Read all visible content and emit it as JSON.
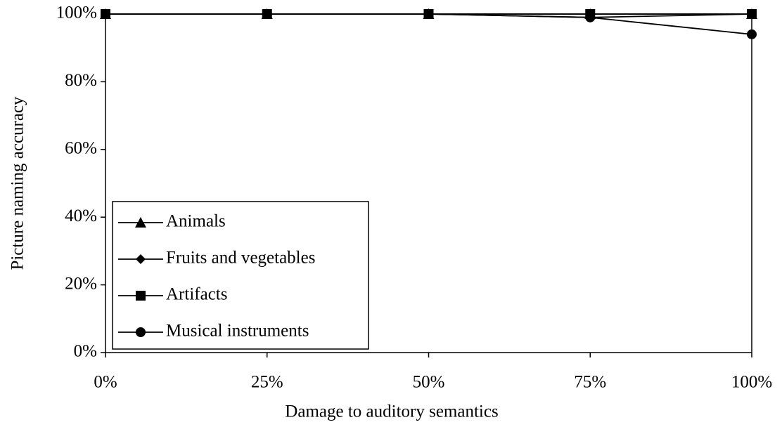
{
  "chart_data": {
    "type": "line",
    "x_label": "Damage to auditory semantics",
    "y_label": "Picture naming accuracy",
    "x": [
      0,
      25,
      50,
      75,
      100
    ],
    "xlim": [
      0,
      100
    ],
    "xticks": [
      {
        "value": 0,
        "label": "0%"
      },
      {
        "value": 25,
        "label": "25%"
      },
      {
        "value": 50,
        "label": "50%"
      },
      {
        "value": 75,
        "label": "75%"
      },
      {
        "value": 100,
        "label": "100%"
      }
    ],
    "ylim": [
      0,
      100
    ],
    "yticks": [
      {
        "value": 0,
        "label": "0%"
      },
      {
        "value": 20,
        "label": "20%"
      },
      {
        "value": 40,
        "label": "40%"
      },
      {
        "value": 60,
        "label": "60%"
      },
      {
        "value": 80,
        "label": "80%"
      },
      {
        "value": 100,
        "label": "100%"
      }
    ],
    "legend": "lower left",
    "series": [
      {
        "name": "Animals",
        "color": "#000000",
        "marker": "triangle",
        "values": [
          100,
          100,
          100,
          100,
          100
        ]
      },
      {
        "name": "Fruits and vegetables",
        "color": "#000000",
        "marker": "diamond",
        "values": [
          100,
          100,
          100,
          99,
          100
        ]
      },
      {
        "name": "Artifacts",
        "color": "#000000",
        "marker": "square",
        "values": [
          100,
          100,
          100,
          100,
          100
        ]
      },
      {
        "name": "Musical instruments",
        "color": "#000000",
        "marker": "circle",
        "values": [
          100,
          100,
          100,
          99,
          94
        ]
      }
    ]
  }
}
